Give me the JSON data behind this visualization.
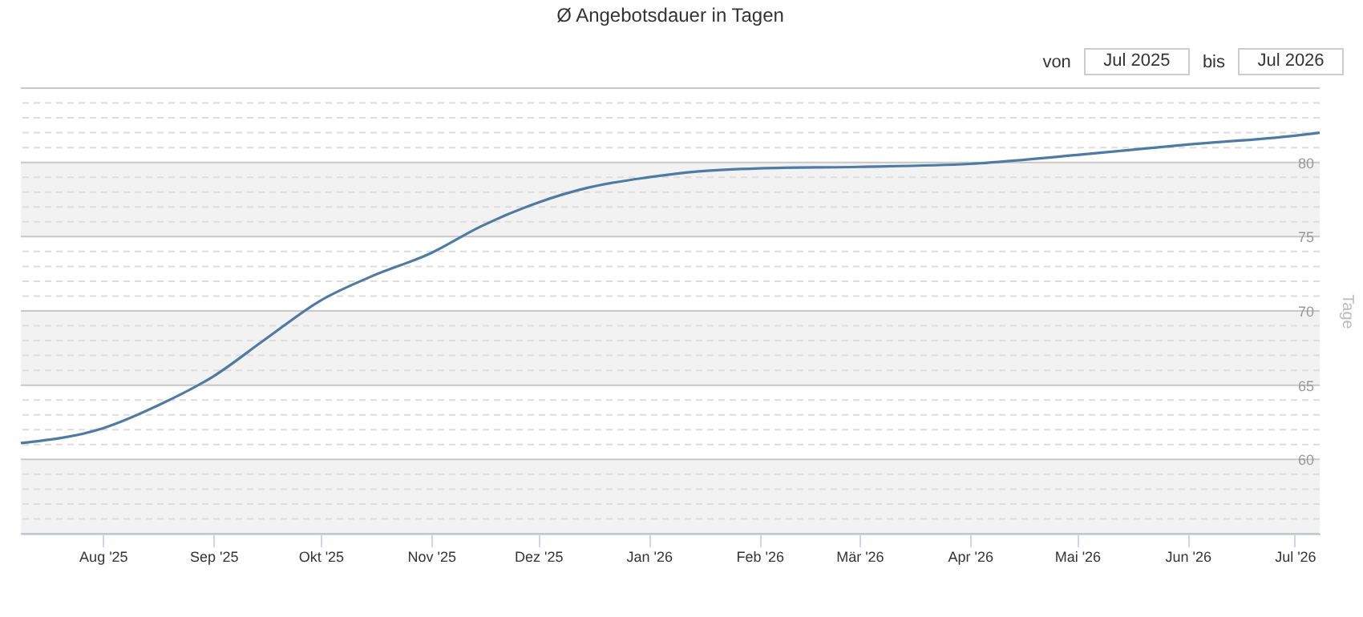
{
  "chart_data": {
    "type": "line",
    "title": "Ø Angebotsdauer in Tagen",
    "ylabel": "Tage",
    "x": [
      "2025-07-09",
      "2025-08-01",
      "2025-08-17",
      "2025-09-01",
      "2025-09-15",
      "2025-10-01",
      "2025-10-15",
      "2025-11-01",
      "2025-11-15",
      "2025-12-01",
      "2025-12-15",
      "2026-01-01",
      "2026-01-15",
      "2026-02-01",
      "2026-03-01",
      "2026-04-01",
      "2026-05-01",
      "2026-06-01",
      "2026-07-01",
      "2026-07-08"
    ],
    "series": [
      {
        "color": "#4f7ba3",
        "values": [
          61.1,
          62.1,
          63.7,
          65.6,
          68.0,
          70.7,
          72.3,
          73.9,
          75.7,
          77.3,
          78.3,
          79.0,
          79.4,
          79.6,
          79.7,
          79.9,
          80.5,
          81.2,
          81.8,
          82.0
        ]
      }
    ],
    "xlim": [
      "2025-07-09",
      "2026-07-08"
    ],
    "xticks": [
      {
        "value": "2025-08-01",
        "label": "Aug '25"
      },
      {
        "value": "2025-09-01",
        "label": "Sep '25"
      },
      {
        "value": "2025-10-01",
        "label": "Okt '25"
      },
      {
        "value": "2025-11-01",
        "label": "Nov '25"
      },
      {
        "value": "2025-12-01",
        "label": "Dez '25"
      },
      {
        "value": "2026-01-01",
        "label": "Jan '26"
      },
      {
        "value": "2026-02-01",
        "label": "Feb '26"
      },
      {
        "value": "2026-03-01",
        "label": "Mär '26"
      },
      {
        "value": "2026-04-01",
        "label": "Apr '26"
      },
      {
        "value": "2026-05-01",
        "label": "Mai '26"
      },
      {
        "value": "2026-06-01",
        "label": "Jun '26"
      },
      {
        "value": "2026-07-01",
        "label": "Jul '26"
      }
    ],
    "ylim": [
      55,
      85
    ],
    "yticks": [
      {
        "value": 56,
        "label": null
      },
      {
        "value": 57,
        "label": null
      },
      {
        "value": 58,
        "label": null
      },
      {
        "value": 59,
        "label": null
      },
      60,
      {
        "value": 61,
        "label": null
      },
      {
        "value": 62,
        "label": null
      },
      {
        "value": 63,
        "label": null
      },
      {
        "value": 64,
        "label": null
      },
      65,
      {
        "value": 66,
        "label": null
      },
      {
        "value": 67,
        "label": null
      },
      {
        "value": 68,
        "label": null
      },
      {
        "value": 69,
        "label": null
      },
      70,
      {
        "value": 71,
        "label": null
      },
      {
        "value": 72,
        "label": null
      },
      {
        "value": 73,
        "label": null
      },
      {
        "value": 74,
        "label": null
      },
      75,
      {
        "value": 76,
        "label": null
      },
      {
        "value": 77,
        "label": null
      },
      {
        "value": 78,
        "label": null
      },
      {
        "value": 79,
        "label": null
      },
      80,
      {
        "value": 81,
        "label": null
      },
      {
        "value": 82,
        "label": null
      },
      {
        "value": 83,
        "label": null
      },
      {
        "value": 84,
        "label": null
      }
    ],
    "grid": "y",
    "bands": [
      {
        "axis": "y",
        "from": 55,
        "to": 60,
        "color": "#f2f2f2"
      },
      {
        "axis": "y",
        "from": 65,
        "to": 70,
        "color": "#f2f2f2"
      },
      {
        "axis": "y",
        "from": 75,
        "to": 80,
        "color": "#f2f2f2"
      }
    ],
    "annotations": [
      "von",
      "Jul 2025",
      "bis",
      "Jul 2026"
    ]
  }
}
